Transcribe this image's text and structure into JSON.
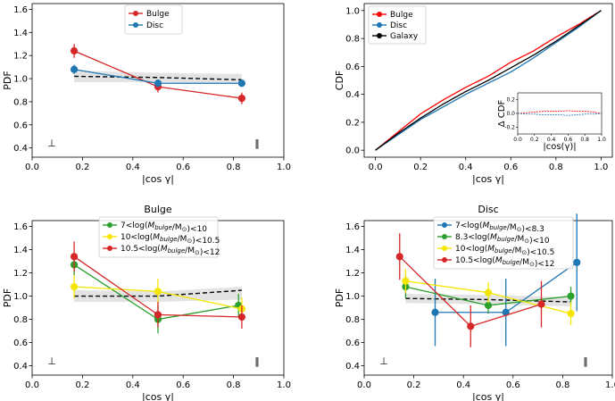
{
  "chart_data": [
    {
      "type": "line",
      "title": "",
      "xlabel": "|cos γ|",
      "ylabel": "PDF",
      "xlim": [
        0.0,
        1.0
      ],
      "ylim": [
        0.32,
        1.65
      ],
      "xticks": [
        "0.0",
        "0.2",
        "0.4",
        "0.6",
        "0.8",
        "1.0"
      ],
      "yticks": [
        "0.4",
        "0.6",
        "0.8",
        "1.0",
        "1.2",
        "1.4",
        "1.6"
      ],
      "legend_position": "top-center",
      "marker_perp": "⊥",
      "marker_par": "‖",
      "random_band": {
        "x": [
          0.167,
          0.5,
          0.833
        ],
        "mean": [
          1.02,
          1.01,
          0.99
        ],
        "lower": [
          0.97,
          0.97,
          0.95
        ],
        "upper": [
          1.07,
          1.05,
          1.04
        ]
      },
      "series": [
        {
          "name": "Bulge",
          "color": "#d62728",
          "x": [
            0.167,
            0.5,
            0.833
          ],
          "y": [
            1.24,
            0.93,
            0.83
          ],
          "err": [
            0.06,
            0.05,
            0.05
          ]
        },
        {
          "name": "Disc",
          "color": "#1f77b4",
          "x": [
            0.167,
            0.5,
            0.833
          ],
          "y": [
            1.08,
            0.96,
            0.96
          ],
          "err": [
            0.04,
            0.03,
            0.03
          ]
        }
      ]
    },
    {
      "type": "line",
      "title": "",
      "xlabel": "|cos γ|",
      "ylabel": "CDF",
      "xlim": [
        -0.05,
        1.05
      ],
      "ylim": [
        -0.05,
        1.05
      ],
      "xticks": [
        "0.0",
        "0.2",
        "0.4",
        "0.6",
        "0.8",
        "1.0"
      ],
      "yticks": [
        "0.0",
        "0.2",
        "0.4",
        "0.6",
        "0.8",
        "1.0"
      ],
      "legend_position": "top-left",
      "series": [
        {
          "name": "Bulge",
          "color": "#ff0000",
          "x": [
            0,
            0.1,
            0.2,
            0.3,
            0.4,
            0.5,
            0.6,
            0.7,
            0.8,
            0.9,
            1.0
          ],
          "y": [
            0,
            0.13,
            0.26,
            0.36,
            0.45,
            0.53,
            0.63,
            0.71,
            0.81,
            0.9,
            1.0
          ]
        },
        {
          "name": "Disc",
          "color": "#1f77b4",
          "x": [
            0,
            0.1,
            0.2,
            0.3,
            0.4,
            0.5,
            0.6,
            0.7,
            0.8,
            0.9,
            1.0
          ],
          "y": [
            0,
            0.11,
            0.22,
            0.31,
            0.4,
            0.48,
            0.56,
            0.66,
            0.77,
            0.88,
            1.0
          ]
        },
        {
          "name": "Galaxy",
          "color": "#000000",
          "x": [
            0,
            0.1,
            0.2,
            0.3,
            0.4,
            0.5,
            0.6,
            0.7,
            0.8,
            0.9,
            1.0
          ],
          "y": [
            0,
            0.12,
            0.23,
            0.33,
            0.42,
            0.5,
            0.59,
            0.68,
            0.78,
            0.89,
            1.0
          ]
        }
      ],
      "inset": {
        "ylabel": "Δ CDF",
        "xlabel": "|cos(γ)|",
        "xticks": [
          "0.0",
          "0.2",
          "0.4",
          "0.6",
          "0.8",
          "1.0"
        ],
        "yticks": [
          "0.2",
          "0.0",
          "-0.2"
        ],
        "xlim": [
          0,
          1
        ],
        "ylim": [
          -0.3,
          0.3
        ],
        "series": [
          {
            "name": "Bulge",
            "color": "#ff0000",
            "x": [
              0,
              0.1,
              0.2,
              0.3,
              0.4,
              0.5,
              0.6,
              0.7,
              0.8,
              0.9,
              1.0
            ],
            "y": [
              0,
              0.01,
              0.02,
              0.03,
              0.03,
              0.03,
              0.04,
              0.03,
              0.03,
              0.02,
              0
            ]
          },
          {
            "name": "Disc",
            "color": "#1f77b4",
            "x": [
              0,
              0.1,
              0.2,
              0.3,
              0.4,
              0.5,
              0.6,
              0.7,
              0.8,
              0.9,
              1.0
            ],
            "y": [
              0,
              -0.01,
              -0.01,
              -0.02,
              -0.02,
              -0.02,
              -0.03,
              -0.02,
              -0.01,
              -0.01,
              0
            ]
          }
        ]
      }
    },
    {
      "type": "line",
      "title": "Bulge",
      "xlabel": "|cos γ|",
      "ylabel": "PDF",
      "xlim": [
        0.0,
        1.0
      ],
      "ylim": [
        0.32,
        1.65
      ],
      "xticks": [
        "0.0",
        "0.2",
        "0.4",
        "0.6",
        "0.8",
        "1.0"
      ],
      "yticks": [
        "0.4",
        "0.6",
        "0.8",
        "1.0",
        "1.2",
        "1.4",
        "1.6"
      ],
      "legend_position": "top-center",
      "marker_perp": "⊥",
      "marker_par": "‖",
      "random_band": {
        "x": [
          0.167,
          0.5,
          0.833
        ],
        "mean": [
          1.0,
          1.0,
          1.05
        ],
        "lower": [
          0.95,
          0.95,
          0.97
        ],
        "upper": [
          1.05,
          1.04,
          1.08
        ]
      },
      "series": [
        {
          "name": "7<log(M_bulge/M_⊙)<10",
          "pre": "7<log(",
          "mid": "M",
          "sub": "bulge",
          "post": "/M",
          "sub2": "⊙",
          "tail": ")<10",
          "color": "#2ca02c",
          "x": [
            0.167,
            0.5,
            0.82
          ],
          "y": [
            1.27,
            0.8,
            0.92
          ],
          "err": [
            0.09,
            0.12,
            0.1
          ]
        },
        {
          "name": "10<log(M_bulge/M_⊙)<10.5",
          "pre": "10<log(",
          "mid": "M",
          "sub": "bulge",
          "post": "/M",
          "sub2": "⊙",
          "tail": ")<10.5",
          "color": "#f5e600",
          "x": [
            0.167,
            0.5,
            0.833
          ],
          "y": [
            1.08,
            1.04,
            0.89
          ],
          "err": [
            0.1,
            0.11,
            0.1
          ]
        },
        {
          "name": "10.5<log(M_bulge/M_⊙)<12",
          "pre": "10.5<log(",
          "mid": "M",
          "sub": "bulge",
          "post": "/M",
          "sub2": "⊙",
          "tail": ")<12",
          "color": "#d62728",
          "x": [
            0.167,
            0.5,
            0.833
          ],
          "y": [
            1.34,
            0.84,
            0.82
          ],
          "err": [
            0.13,
            0.11,
            0.1
          ]
        }
      ]
    },
    {
      "type": "line",
      "title": "Disc",
      "xlabel": "|cos γ|",
      "ylabel": "PDF",
      "xlim": [
        0.0,
        1.0
      ],
      "ylim": [
        0.32,
        1.65
      ],
      "xticks": [
        "0.0",
        "0.2",
        "0.4",
        "0.6",
        "0.8",
        "1.0"
      ],
      "yticks": [
        "0.4",
        "0.6",
        "0.8",
        "1.0",
        "1.2",
        "1.4",
        "1.6"
      ],
      "legend_position": "top-center",
      "marker_perp": "⊥",
      "marker_par": "‖",
      "random_band": {
        "x": [
          0.167,
          0.5,
          0.833
        ],
        "mean": [
          0.98,
          0.97,
          0.95
        ],
        "lower": [
          0.94,
          0.93,
          0.91
        ],
        "upper": [
          1.02,
          1.01,
          0.99
        ]
      },
      "series": [
        {
          "name": "7<log(M_bulge/M_⊙)<8.3",
          "pre": "7<log(",
          "mid": "M",
          "sub": "bulge",
          "post": "/M",
          "sub2": "⊙",
          "tail": ")<8.3",
          "color": "#1f77b4",
          "x": [
            0.286,
            0.571,
            0.857
          ],
          "y": [
            0.86,
            0.86,
            1.29
          ],
          "err": [
            0.29,
            0.29,
            0.42
          ]
        },
        {
          "name": "8.3<log(M_bulge/M_⊙)<10",
          "pre": "8.3<log(",
          "mid": "M",
          "sub": "bulge",
          "post": "/M",
          "sub2": "⊙",
          "tail": ")<10",
          "color": "#2ca02c",
          "x": [
            0.167,
            0.5,
            0.833
          ],
          "y": [
            1.08,
            0.92,
            1.0
          ],
          "err": [
            0.1,
            0.07,
            0.08
          ]
        },
        {
          "name": "10<log(M_bulge/M_⊙)<10.5",
          "pre": "10<log(",
          "mid": "M",
          "sub": "bulge",
          "post": "/M",
          "sub2": "⊙",
          "tail": ")<10.5",
          "color": "#f5e600",
          "x": [
            0.167,
            0.5,
            0.833
          ],
          "y": [
            1.13,
            1.03,
            0.85
          ],
          "err": [
            0.1,
            0.09,
            0.1
          ]
        },
        {
          "name": "10.5<log(M_bulge/M_⊙)<12",
          "pre": "10.5<log(",
          "mid": "M",
          "sub": "bulge",
          "post": "/M",
          "sub2": "⊙",
          "tail": ")<12",
          "color": "#d62728",
          "x": [
            0.143,
            0.429,
            0.714
          ],
          "y": [
            1.34,
            0.74,
            0.93
          ],
          "err": [
            0.2,
            0.18,
            0.2
          ]
        }
      ]
    }
  ]
}
